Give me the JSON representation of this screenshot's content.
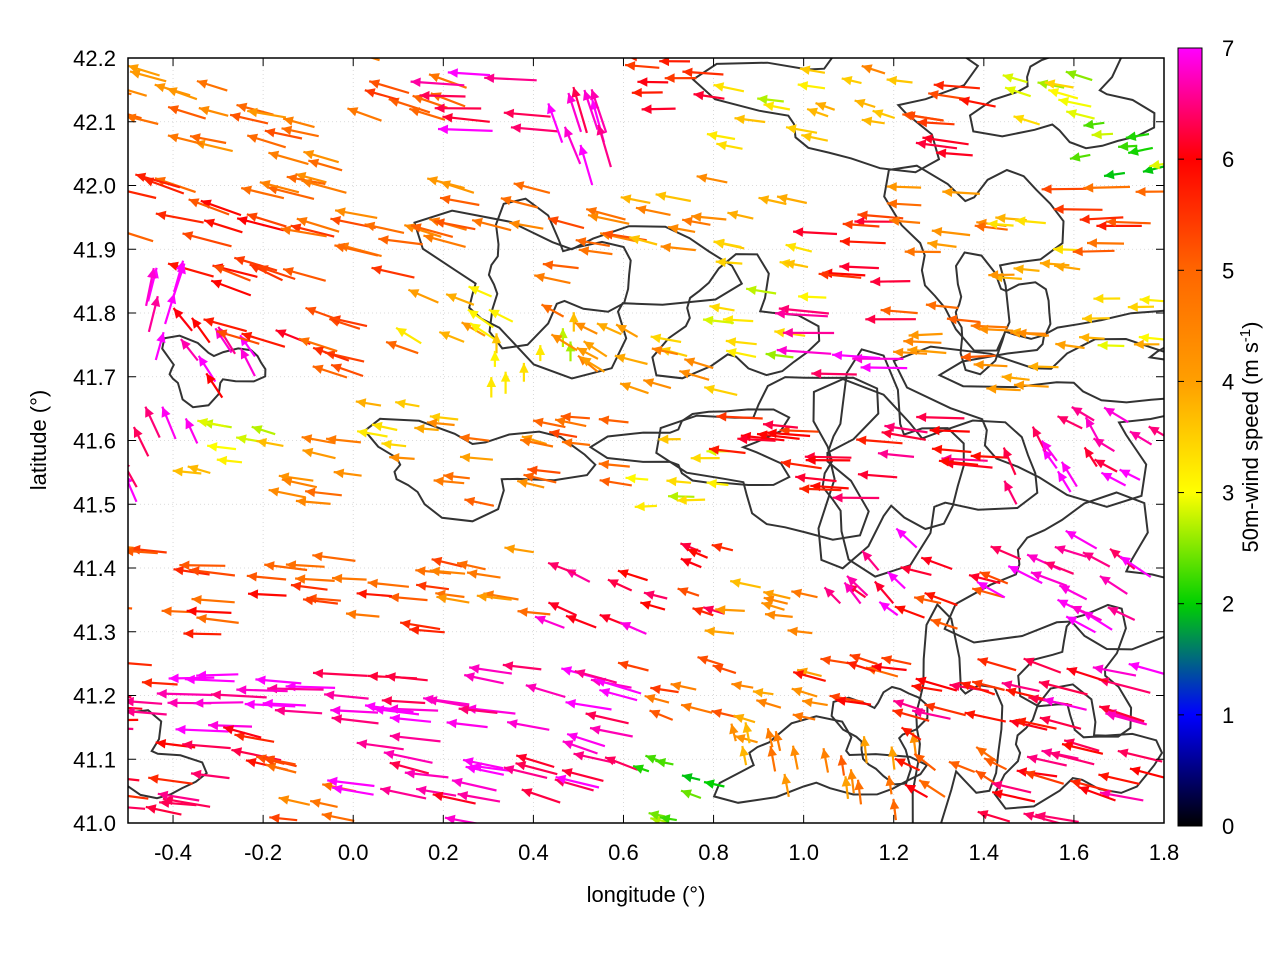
{
  "chart_data": {
    "type": "vector-field",
    "description_note": "",
    "xlabel": "longitude (°)",
    "ylabel": "latitude (°)",
    "xlim": [
      -0.5,
      1.8
    ],
    "ylim": [
      41.0,
      42.2
    ],
    "xticks": [
      -0.4,
      -0.2,
      0.0,
      0.2,
      0.4,
      0.6,
      0.8,
      1.0,
      1.2,
      1.4,
      1.6,
      1.8
    ],
    "xtick_labels": [
      "-0.4",
      "-0.2",
      "0.0",
      "0.2",
      "0.4",
      "0.6",
      "0.8",
      "1.0",
      "1.2",
      "1.4",
      "1.6",
      "1.8"
    ],
    "yticks": [
      41.0,
      41.1,
      41.2,
      41.3,
      41.4,
      41.5,
      41.6,
      41.7,
      41.8,
      41.9,
      42.0,
      42.1,
      42.2
    ],
    "ytick_labels": [
      "41.0",
      "41.1",
      "41.2",
      "41.3",
      "41.4",
      "41.5",
      "41.6",
      "41.7",
      "41.8",
      "41.9",
      "42.0",
      "42.1",
      "42.2"
    ],
    "grid": true,
    "colorbar": {
      "label_main": "50m-wind speed (m s",
      "label_sup": "-1",
      "label_end": ")",
      "range": [
        0,
        7
      ],
      "ticks": [
        "0",
        "1",
        "2",
        "3",
        "4",
        "5",
        "6",
        "7"
      ],
      "palette": [
        "#000000",
        "#0000ff",
        "#00d000",
        "#ffff00",
        "#ff9f00",
        "#ff6600",
        "#ff0000",
        "#ff00ff"
      ]
    },
    "contour_color": "#333333",
    "vectors": [
      {
        "lon": -0.45,
        "lat": 42.15,
        "u": -3.6,
        "v": 0.9,
        "speed": 4.5
      },
      {
        "lon": -0.25,
        "lat": 42.1,
        "u": -3.8,
        "v": 1.0,
        "speed": 4.6
      },
      {
        "lon": -0.05,
        "lat": 42.05,
        "u": -4.0,
        "v": 1.1,
        "speed": 4.8
      },
      {
        "lon": 0.15,
        "lat": 42.15,
        "u": -4.2,
        "v": 1.2,
        "speed": 5.0
      },
      {
        "lon": 0.35,
        "lat": 42.12,
        "u": -5.5,
        "v": 0.3,
        "speed": 6.8
      },
      {
        "lon": 0.55,
        "lat": 42.05,
        "u": -1.5,
        "v": 4.5,
        "speed": 6.9
      },
      {
        "lon": 0.75,
        "lat": 42.15,
        "u": -4.0,
        "v": 0.2,
        "speed": 5.6
      },
      {
        "lon": 0.95,
        "lat": 42.1,
        "u": -3.0,
        "v": 0.5,
        "speed": 3.2
      },
      {
        "lon": 1.15,
        "lat": 42.15,
        "u": -2.5,
        "v": 0.6,
        "speed": 4.0
      },
      {
        "lon": 1.35,
        "lat": 42.1,
        "u": -4.5,
        "v": 0.5,
        "speed": 5.7
      },
      {
        "lon": 1.55,
        "lat": 42.12,
        "u": -3.2,
        "v": 0.8,
        "speed": 3.1
      },
      {
        "lon": 1.72,
        "lat": 42.05,
        "u": -2.5,
        "v": -0.3,
        "speed": 2.4
      },
      {
        "lon": -0.45,
        "lat": 41.95,
        "u": -4.8,
        "v": 1.4,
        "speed": 5.3
      },
      {
        "lon": -0.25,
        "lat": 41.9,
        "u": -5.0,
        "v": 1.3,
        "speed": 5.5
      },
      {
        "lon": -0.05,
        "lat": 41.95,
        "u": -4.6,
        "v": 1.2,
        "speed": 5.1
      },
      {
        "lon": 0.15,
        "lat": 41.9,
        "u": -4.4,
        "v": 1.0,
        "speed": 4.9
      },
      {
        "lon": 0.35,
        "lat": 41.95,
        "u": -4.2,
        "v": 1.0,
        "speed": 4.7
      },
      {
        "lon": 0.55,
        "lat": 41.9,
        "u": -4.3,
        "v": 0.8,
        "speed": 4.8
      },
      {
        "lon": 0.75,
        "lat": 41.95,
        "u": -3.5,
        "v": 0.6,
        "speed": 4.2
      },
      {
        "lon": 0.95,
        "lat": 41.92,
        "u": -3.0,
        "v": 0.5,
        "speed": 3.4
      },
      {
        "lon": 1.15,
        "lat": 41.9,
        "u": -4.6,
        "v": 0.2,
        "speed": 5.8
      },
      {
        "lon": 1.35,
        "lat": 41.95,
        "u": -3.8,
        "v": 0.3,
        "speed": 4.5
      },
      {
        "lon": 1.55,
        "lat": 41.9,
        "u": -3.2,
        "v": 0.2,
        "speed": 3.6
      },
      {
        "lon": 1.72,
        "lat": 41.95,
        "u": -4.8,
        "v": 0.0,
        "speed": 5.2
      },
      {
        "lon": -0.45,
        "lat": 41.78,
        "u": 1.0,
        "v": 3.5,
        "speed": 6.9
      },
      {
        "lon": -0.3,
        "lat": 41.72,
        "u": -1.8,
        "v": 2.5,
        "speed": 6.5
      },
      {
        "lon": -0.15,
        "lat": 41.8,
        "u": -4.2,
        "v": 1.5,
        "speed": 5.6
      },
      {
        "lon": 0.05,
        "lat": 41.75,
        "u": -3.8,
        "v": 1.2,
        "speed": 5.2
      },
      {
        "lon": 0.25,
        "lat": 41.78,
        "u": -3.0,
        "v": 1.5,
        "speed": 3.6
      },
      {
        "lon": 0.4,
        "lat": 41.72,
        "u": 0.0,
        "v": 2.0,
        "speed": 3.2
      },
      {
        "lon": 0.55,
        "lat": 41.75,
        "u": -2.5,
        "v": 1.5,
        "speed": 4.3
      },
      {
        "lon": 0.75,
        "lat": 41.72,
        "u": -3.2,
        "v": 0.8,
        "speed": 4.0
      },
      {
        "lon": 0.95,
        "lat": 41.78,
        "u": -3.0,
        "v": 0.4,
        "speed": 3.0
      },
      {
        "lon": 1.15,
        "lat": 41.75,
        "u": -5.5,
        "v": 0.3,
        "speed": 6.8
      },
      {
        "lon": 1.35,
        "lat": 41.78,
        "u": -4.0,
        "v": 0.1,
        "speed": 4.6
      },
      {
        "lon": 1.55,
        "lat": 41.72,
        "u": -3.5,
        "v": 0.3,
        "speed": 4.1
      },
      {
        "lon": 1.72,
        "lat": 41.78,
        "u": -3.0,
        "v": 0.2,
        "speed": 3.5
      },
      {
        "lon": -0.45,
        "lat": 41.55,
        "u": -1.5,
        "v": 3.2,
        "speed": 6.7
      },
      {
        "lon": -0.25,
        "lat": 41.58,
        "u": -2.8,
        "v": 0.5,
        "speed": 3.3
      },
      {
        "lon": -0.05,
        "lat": 41.55,
        "u": -3.6,
        "v": 0.6,
        "speed": 4.4
      },
      {
        "lon": 0.15,
        "lat": 41.6,
        "u": -3.0,
        "v": 0.3,
        "speed": 3.8
      },
      {
        "lon": 0.35,
        "lat": 41.55,
        "u": -3.2,
        "v": 0.6,
        "speed": 4.6
      },
      {
        "lon": 0.55,
        "lat": 41.58,
        "u": -3.6,
        "v": 0.5,
        "speed": 5.0
      },
      {
        "lon": 0.75,
        "lat": 41.55,
        "u": -2.8,
        "v": 0.2,
        "speed": 3.2
      },
      {
        "lon": 0.95,
        "lat": 41.6,
        "u": -4.5,
        "v": 0.4,
        "speed": 5.9
      },
      {
        "lon": 1.15,
        "lat": 41.55,
        "u": -4.6,
        "v": 0.3,
        "speed": 6.2
      },
      {
        "lon": 1.35,
        "lat": 41.58,
        "u": -4.8,
        "v": 0.5,
        "speed": 6.4
      },
      {
        "lon": 1.55,
        "lat": 41.55,
        "u": -1.5,
        "v": 2.5,
        "speed": 6.8
      },
      {
        "lon": 1.72,
        "lat": 41.58,
        "u": -2.5,
        "v": 1.5,
        "speed": 6.6
      },
      {
        "lon": -0.45,
        "lat": 41.38,
        "u": -4.0,
        "v": 0.2,
        "speed": 5.0
      },
      {
        "lon": -0.25,
        "lat": 41.35,
        "u": -4.5,
        "v": 0.3,
        "speed": 5.4
      },
      {
        "lon": -0.05,
        "lat": 41.38,
        "u": -4.2,
        "v": 0.4,
        "speed": 5.1
      },
      {
        "lon": 0.15,
        "lat": 41.35,
        "u": -4.0,
        "v": 0.5,
        "speed": 5.2
      },
      {
        "lon": 0.35,
        "lat": 41.38,
        "u": -3.5,
        "v": 0.6,
        "speed": 4.4
      },
      {
        "lon": 0.55,
        "lat": 41.35,
        "u": -3.0,
        "v": 1.2,
        "speed": 6.5
      },
      {
        "lon": 0.75,
        "lat": 41.38,
        "u": -2.5,
        "v": 0.8,
        "speed": 5.8
      },
      {
        "lon": 0.95,
        "lat": 41.35,
        "u": -3.0,
        "v": 0.5,
        "speed": 4.2
      },
      {
        "lon": 1.15,
        "lat": 41.38,
        "u": -2.0,
        "v": 2.0,
        "speed": 6.7
      },
      {
        "lon": 1.35,
        "lat": 41.35,
        "u": -3.5,
        "v": 1.0,
        "speed": 5.6
      },
      {
        "lon": 1.55,
        "lat": 41.38,
        "u": -3.5,
        "v": 1.6,
        "speed": 6.8
      },
      {
        "lon": 1.72,
        "lat": 41.35,
        "u": -3.0,
        "v": 1.8,
        "speed": 6.9
      },
      {
        "lon": -0.45,
        "lat": 41.2,
        "u": -4.5,
        "v": 0.2,
        "speed": 6.0
      },
      {
        "lon": -0.25,
        "lat": 41.18,
        "u": -5.5,
        "v": 0.1,
        "speed": 6.9
      },
      {
        "lon": -0.05,
        "lat": 41.2,
        "u": -5.5,
        "v": 0.2,
        "speed": 6.9
      },
      {
        "lon": 0.15,
        "lat": 41.18,
        "u": -5.2,
        "v": 0.5,
        "speed": 6.8
      },
      {
        "lon": 0.35,
        "lat": 41.2,
        "u": -5.0,
        "v": 0.6,
        "speed": 6.8
      },
      {
        "lon": 0.55,
        "lat": 41.18,
        "u": -4.5,
        "v": 1.2,
        "speed": 6.9
      },
      {
        "lon": 0.75,
        "lat": 41.2,
        "u": -3.0,
        "v": 0.8,
        "speed": 5.0
      },
      {
        "lon": 0.95,
        "lat": 41.18,
        "u": -2.6,
        "v": 0.6,
        "speed": 4.4
      },
      {
        "lon": 1.15,
        "lat": 41.2,
        "u": -3.5,
        "v": 0.8,
        "speed": 5.5
      },
      {
        "lon": 1.35,
        "lat": 41.18,
        "u": -4.0,
        "v": 1.0,
        "speed": 6.0
      },
      {
        "lon": 1.55,
        "lat": 41.2,
        "u": -4.5,
        "v": 1.2,
        "speed": 6.2
      },
      {
        "lon": 1.72,
        "lat": 41.18,
        "u": -5.0,
        "v": 1.3,
        "speed": 6.4
      },
      {
        "lon": -0.45,
        "lat": 41.05,
        "u": -4.6,
        "v": 0.6,
        "speed": 6.0
      },
      {
        "lon": -0.25,
        "lat": 41.08,
        "u": -4.8,
        "v": 0.8,
        "speed": 6.1
      },
      {
        "lon": -0.05,
        "lat": 41.05,
        "u": -3.5,
        "v": 0.6,
        "speed": 4.8
      },
      {
        "lon": 0.15,
        "lat": 41.08,
        "u": -5.0,
        "v": 0.8,
        "speed": 6.8
      },
      {
        "lon": 0.35,
        "lat": 41.05,
        "u": -4.8,
        "v": 1.0,
        "speed": 6.7
      },
      {
        "lon": 0.55,
        "lat": 41.08,
        "u": -4.2,
        "v": 1.2,
        "speed": 6.6
      },
      {
        "lon": 0.75,
        "lat": 41.05,
        "u": -2.0,
        "v": 0.5,
        "speed": 2.5
      },
      {
        "lon": 0.95,
        "lat": 41.08,
        "u": -0.5,
        "v": 2.5,
        "speed": 4.2
      },
      {
        "lon": 1.15,
        "lat": 41.05,
        "u": -0.3,
        "v": 2.6,
        "speed": 4.5
      },
      {
        "lon": 1.35,
        "lat": 41.08,
        "u": -2.5,
        "v": 1.5,
        "speed": 5.5
      },
      {
        "lon": 1.55,
        "lat": 41.05,
        "u": -4.2,
        "v": 1.0,
        "speed": 6.0
      },
      {
        "lon": 1.72,
        "lat": 41.08,
        "u": -4.5,
        "v": 1.1,
        "speed": 6.1
      }
    ]
  }
}
